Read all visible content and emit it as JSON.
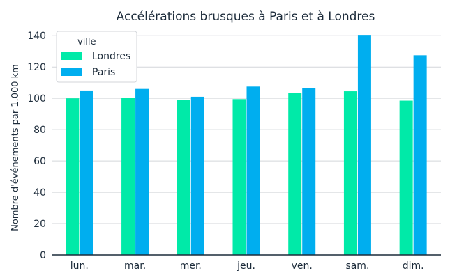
{
  "chart_data": {
    "type": "bar",
    "title": "Accélérations brusques à Paris et à Londres",
    "xlabel": "",
    "ylabel": "Nombre d'événements par 1.000 km",
    "categories": [
      "lun.",
      "mar.",
      "mer.",
      "jeu.",
      "ven.",
      "sam.",
      "dim."
    ],
    "series": [
      {
        "name": "Londres",
        "color": "#00eaa8",
        "values": [
          100,
          100.5,
          99,
          99.5,
          103.5,
          104.5,
          98.5
        ]
      },
      {
        "name": "Paris",
        "color": "#00aeef",
        "values": [
          105,
          106,
          101,
          107.5,
          106.5,
          140.5,
          127.5
        ]
      }
    ],
    "ylim": [
      0,
      145
    ],
    "yticks": [
      0,
      20,
      40,
      60,
      80,
      100,
      120,
      140
    ],
    "grid": true,
    "legend": {
      "title": "ville",
      "placement": "top-left"
    }
  }
}
